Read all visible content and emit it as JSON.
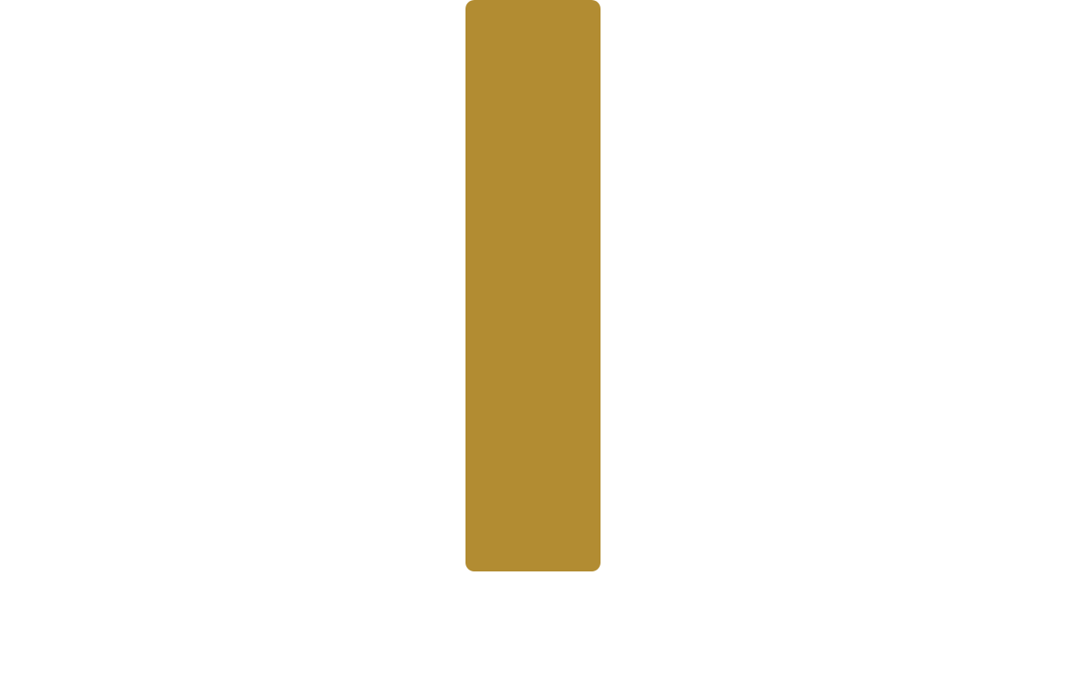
{
  "panel": {
    "name": "gold-vertical-panel",
    "color": "#B28C32"
  },
  "background": {
    "color": "#FFFFFF"
  }
}
